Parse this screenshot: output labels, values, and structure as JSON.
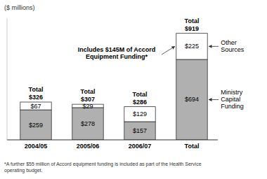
{
  "chart_data": {
    "type": "bar",
    "stacked": true,
    "data_labels": true,
    "tick_labels": "x",
    "legend": "right",
    "y_label": "($ millions)",
    "categories": [
      "2004/05",
      "2005/06",
      "2006/07",
      "Total"
    ],
    "series": [
      {
        "name": "Ministry\nCapital\nFunding",
        "color": "#b0b0b0",
        "values": [
          259,
          278,
          157,
          694
        ],
        "value_labels": [
          "$259",
          "$278",
          "$157",
          "$694"
        ]
      },
      {
        "name": "Other\nSources",
        "color": "#ffffff",
        "values": [
          67,
          29,
          129,
          225
        ],
        "value_labels": [
          "$67",
          "$29",
          "$129",
          "$225"
        ]
      }
    ],
    "totals": [
      326,
      307,
      286,
      919
    ],
    "total_labels": [
      "$326",
      "$307",
      "$286",
      "$919"
    ],
    "total_text": "Total",
    "annotation": "Includes $145M of Accord\nEquipment Funding*",
    "footnote": "*A further $55 million of Accord equipment funding is included as part of the Health Service\noperating budget.",
    "ylim": [
      0,
      1050
    ]
  }
}
